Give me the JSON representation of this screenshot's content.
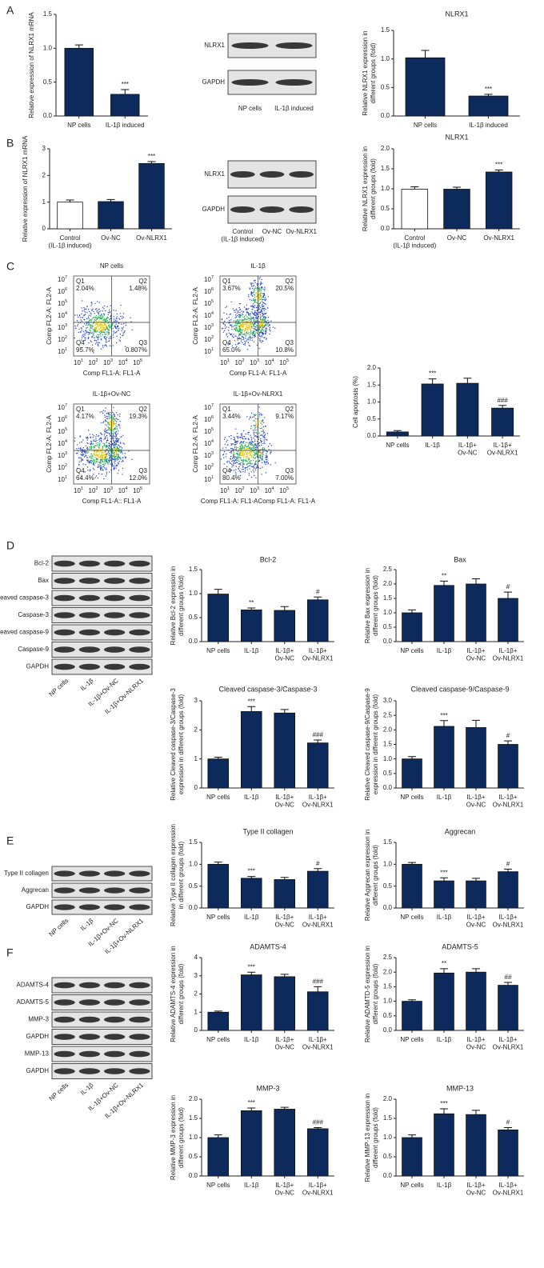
{
  "panel_letters": [
    "A",
    "B",
    "C",
    "D",
    "E",
    "F"
  ],
  "chart_data": [
    {
      "type": "bar",
      "ylabel": [
        "Relative expression of NLRX1 mRNA"
      ],
      "categories": [
        [
          "NP cells"
        ],
        [
          "IL-1β induced"
        ]
      ],
      "values": [
        1.0,
        0.32
      ],
      "errors": [
        0.05,
        0.07
      ],
      "annotations": [
        null,
        "***"
      ],
      "color": "#0c2a5b",
      "ylim": [
        0,
        1.5
      ],
      "yticks": [
        {
          "value": 0,
          "label": "0.0"
        },
        0.5,
        {
          "value": 1,
          "label": "1.0"
        },
        1.5
      ]
    },
    {
      "type": "bar",
      "title": "NLRX1",
      "ylabel": [
        "Relative NLRX1 expression in",
        "different groups (fold)"
      ],
      "categories": [
        [
          "NP cells"
        ],
        [
          "IL-1β induced"
        ]
      ],
      "values": [
        1.02,
        0.35
      ],
      "errors": [
        0.13,
        0.03
      ],
      "annotations": [
        null,
        "***"
      ],
      "color": "#0c2a5b",
      "ylim": [
        0,
        1.5
      ],
      "yticks": [
        {
          "value": 0,
          "label": "0.0"
        },
        0.5,
        {
          "value": 1,
          "label": "1.0"
        },
        1.5
      ]
    },
    {
      "type": "bar",
      "ylabel": [
        "Relative expression of NLRX1 mRNA"
      ],
      "categories": [
        [
          "Control",
          "(IL-1β induced)"
        ],
        [
          "Ov-NC"
        ],
        [
          "Ov-NLRX1"
        ]
      ],
      "values": [
        1.0,
        1.02,
        2.45
      ],
      "errors": [
        0.08,
        0.08,
        0.07
      ],
      "annotations": [
        null,
        null,
        "***"
      ],
      "colors": [
        "#ffffff",
        "#0c2a5b",
        "#0c2a5b"
      ],
      "ylim": [
        0,
        3
      ],
      "yticks": [
        0,
        1,
        2,
        3
      ]
    },
    {
      "type": "bar",
      "title": "NLRX1",
      "ylabel": [
        "Relative NLRX1 expression in",
        "different groups (fold)"
      ],
      "categories": [
        [
          "Control",
          "(IL-1β induced)"
        ],
        [
          "Ov-NC"
        ],
        [
          "Ov-NLRX1"
        ]
      ],
      "values": [
        0.99,
        0.99,
        1.42
      ],
      "errors": [
        0.06,
        0.05,
        0.05
      ],
      "annotations": [
        null,
        null,
        "***"
      ],
      "colors": [
        "#ffffff",
        "#0c2a5b",
        "#0c2a5b"
      ],
      "ylim": [
        0,
        2
      ],
      "yticks": [
        {
          "value": 0,
          "label": "0.0"
        },
        0.5,
        {
          "value": 1,
          "label": "1.0"
        },
        1.5,
        {
          "value": 2,
          "label": "2.0"
        }
      ]
    },
    {
      "type": "bar",
      "ylabel": [
        "Cell apoptosis (%)"
      ],
      "categories": [
        [
          "NP cells"
        ],
        [
          "IL-1β"
        ],
        [
          "IL-1β+",
          "Ov-NC"
        ],
        [
          "IL-1β+",
          "Ov-NLRX1"
        ]
      ],
      "values": [
        0.12,
        1.53,
        1.55,
        0.82
      ],
      "errors": [
        0.04,
        0.15,
        0.15,
        0.08
      ],
      "annotations": [
        null,
        "***",
        null,
        "###"
      ],
      "color": "#0c2a5b",
      "ylim": [
        0,
        2
      ],
      "yticks": [
        {
          "value": 0,
          "label": "0.0"
        },
        0.5,
        {
          "value": 1,
          "label": "1.0"
        },
        1.5,
        {
          "value": 2,
          "label": "2.0"
        }
      ]
    },
    {
      "type": "bar",
      "title": "Bcl-2",
      "ylabel": [
        "Relative Bcl-2 expression in",
        "different groups (fold)"
      ],
      "categories": [
        [
          "NP cells"
        ],
        [
          "IL-1β"
        ],
        [
          "IL-1β+",
          "Ov-NC"
        ],
        [
          "IL-1β+",
          "Ov-NLRX1"
        ]
      ],
      "values": [
        0.99,
        0.66,
        0.65,
        0.87
      ],
      "errors": [
        0.1,
        0.04,
        0.08,
        0.06
      ],
      "annotations": [
        null,
        "**",
        null,
        "#"
      ],
      "color": "#0c2a5b",
      "ylim": [
        0,
        1.5
      ],
      "yticks": [
        {
          "value": 0,
          "label": "0.0"
        },
        0.5,
        {
          "value": 1,
          "label": "1.0"
        },
        1.5
      ]
    },
    {
      "type": "bar",
      "title": "Bax",
      "ylabel": [
        "Relative Bax expression in",
        "different groups (fold)"
      ],
      "categories": [
        [
          "NP cells"
        ],
        [
          "IL-1β"
        ],
        [
          "IL-1β+",
          "Ov-NC"
        ],
        [
          "IL-1β+",
          "Ov-NLRX1"
        ]
      ],
      "values": [
        1.0,
        1.95,
        2.0,
        1.5
      ],
      "errors": [
        0.1,
        0.15,
        0.18,
        0.22
      ],
      "annotations": [
        null,
        "**",
        null,
        "#"
      ],
      "color": "#0c2a5b",
      "ylim": [
        0,
        2.5
      ],
      "yticks": [
        {
          "value": 0,
          "label": "0.0"
        },
        0.5,
        {
          "value": 1,
          "label": "1.0"
        },
        1.5,
        {
          "value": 2,
          "label": "2.0"
        },
        2.5
      ]
    },
    {
      "type": "bar",
      "title": "Cleaved caspase-3/Caspase-3",
      "ylabel": [
        "Relative Cleaved caspase-3/Caspase-3",
        "expression in different groups (fold)"
      ],
      "categories": [
        [
          "NP cells"
        ],
        [
          "IL-1β"
        ],
        [
          "IL-1β+",
          "Ov-NC"
        ],
        [
          "IL-1β+",
          "Ov-NLRX1"
        ]
      ],
      "values": [
        1.0,
        2.63,
        2.58,
        1.55
      ],
      "errors": [
        0.06,
        0.17,
        0.12,
        0.1
      ],
      "annotations": [
        null,
        "***",
        null,
        "###"
      ],
      "color": "#0c2a5b",
      "ylim": [
        0,
        3
      ],
      "yticks": [
        0,
        1,
        2,
        3
      ]
    },
    {
      "type": "bar",
      "title": "Cleaved caspase-9/Caspase-9",
      "ylabel": [
        "Relative Cleaved caspase-9/Caspase-9",
        "expression in different groups (fold)"
      ],
      "categories": [
        [
          "NP cells"
        ],
        [
          "IL-1β"
        ],
        [
          "IL-1β+",
          "Ov-NC"
        ],
        [
          "IL-1β+",
          "Ov-NLRX1"
        ]
      ],
      "values": [
        1.0,
        2.12,
        2.08,
        1.5
      ],
      "errors": [
        0.08,
        0.2,
        0.25,
        0.12
      ],
      "annotations": [
        null,
        "***",
        null,
        "#"
      ],
      "color": "#0c2a5b",
      "ylim": [
        0,
        3
      ],
      "yticks": [
        {
          "value": 0,
          "label": "0.0"
        },
        0.5,
        {
          "value": 1,
          "label": "1.0"
        },
        1.5,
        {
          "value": 2,
          "label": "2.0"
        },
        2.5,
        {
          "value": 3,
          "label": "3.0"
        }
      ]
    },
    {
      "type": "bar",
      "title": "Type II collagen",
      "ylabel": [
        "Relative Type II collagen expression",
        "in different groups (fold)"
      ],
      "categories": [
        [
          "NP cells"
        ],
        [
          "IL-1β"
        ],
        [
          "IL-1β+",
          "Ov-NC"
        ],
        [
          "IL-1β+",
          "Ov-NLRX1"
        ]
      ],
      "values": [
        1.0,
        0.68,
        0.65,
        0.84
      ],
      "errors": [
        0.05,
        0.04,
        0.05,
        0.06
      ],
      "annotations": [
        null,
        "***",
        null,
        "#"
      ],
      "color": "#0c2a5b",
      "ylim": [
        0,
        1.5
      ],
      "yticks": [
        {
          "value": 0,
          "label": "0.0"
        },
        0.5,
        {
          "value": 1,
          "label": "1.0"
        },
        1.5
      ]
    },
    {
      "type": "bar",
      "title": "Aggrecan",
      "ylabel": [
        "Relative Aggrecan expression in",
        "different groups (fold)"
      ],
      "categories": [
        [
          "NP cells"
        ],
        [
          "IL-1β"
        ],
        [
          "IL-1β+",
          "Ov-NC"
        ],
        [
          "IL-1β+",
          "Ov-NLRX1"
        ]
      ],
      "values": [
        1.0,
        0.62,
        0.62,
        0.83
      ],
      "errors": [
        0.04,
        0.07,
        0.06,
        0.06
      ],
      "annotations": [
        null,
        "***",
        null,
        "#"
      ],
      "color": "#0c2a5b",
      "ylim": [
        0,
        1.5
      ],
      "yticks": [
        {
          "value": 0,
          "label": "0.0"
        },
        0.5,
        {
          "value": 1,
          "label": "1.0"
        },
        1.5
      ]
    },
    {
      "type": "bar",
      "title": "ADAMTS-4",
      "ylabel": [
        "Relative ADAMTS-4 expression in",
        "different groups (fold)"
      ],
      "categories": [
        [
          "NP cells"
        ],
        [
          "IL-1β"
        ],
        [
          "IL-1β+",
          "Ov-NC"
        ],
        [
          "IL-1β+",
          "Ov-NLRX1"
        ]
      ],
      "values": [
        1.0,
        3.05,
        2.95,
        2.12
      ],
      "errors": [
        0.06,
        0.15,
        0.13,
        0.28
      ],
      "annotations": [
        null,
        "***",
        null,
        "###"
      ],
      "color": "#0c2a5b",
      "ylim": [
        0,
        4
      ],
      "yticks": [
        0,
        1,
        2,
        3,
        4
      ]
    },
    {
      "type": "bar",
      "title": "ADAMTS-5",
      "ylabel": [
        "Relative ADAMTD-5 expression in",
        "different groups (fold)"
      ],
      "categories": [
        [
          "NP cells"
        ],
        [
          "IL-1β"
        ],
        [
          "IL-1β+",
          "Ov-NC"
        ],
        [
          "IL-1β+",
          "Ov-NLRX1"
        ]
      ],
      "values": [
        1.0,
        1.97,
        2.0,
        1.55
      ],
      "errors": [
        0.05,
        0.15,
        0.12,
        0.1
      ],
      "annotations": [
        null,
        "**",
        null,
        "##"
      ],
      "color": "#0c2a5b",
      "ylim": [
        0,
        2.5
      ],
      "yticks": [
        {
          "value": 0,
          "label": "0.0"
        },
        0.5,
        {
          "value": 1,
          "label": "1.0"
        },
        1.5,
        {
          "value": 2,
          "label": "2.0"
        },
        2.5
      ]
    },
    {
      "type": "bar",
      "title": "MMP-3",
      "ylabel": [
        "Relative MMP-3 expression in",
        "different groups (fold)"
      ],
      "categories": [
        [
          "NP cells"
        ],
        [
          "IL-1β"
        ],
        [
          "IL-1β+",
          "Ov-NC"
        ],
        [
          "IL-1β+",
          "Ov-NLRX1"
        ]
      ],
      "values": [
        1.0,
        1.7,
        1.74,
        1.23
      ],
      "errors": [
        0.07,
        0.07,
        0.05,
        0.03
      ],
      "annotations": [
        null,
        "***",
        null,
        "###"
      ],
      "color": "#0c2a5b",
      "ylim": [
        0,
        2
      ],
      "yticks": [
        {
          "value": 0,
          "label": "0.0"
        },
        0.5,
        {
          "value": 1,
          "label": "1.0"
        },
        1.5,
        {
          "value": 2,
          "label": "2.0"
        }
      ]
    },
    {
      "type": "bar",
      "title": "MMP-13",
      "ylabel": [
        "Relative MMP-13 expression in",
        "different groups (fold)"
      ],
      "categories": [
        [
          "NP cells"
        ],
        [
          "IL-1β"
        ],
        [
          "IL-1β+",
          "Ov-NC"
        ],
        [
          "IL-1β+",
          "Ov-NLRX1"
        ]
      ],
      "values": [
        1.0,
        1.62,
        1.6,
        1.2
      ],
      "errors": [
        0.07,
        0.13,
        0.11,
        0.06
      ],
      "annotations": [
        null,
        "***",
        null,
        "#"
      ],
      "color": "#0c2a5b",
      "ylim": [
        0,
        2
      ],
      "yticks": [
        {
          "value": 0,
          "label": "0.0"
        },
        0.5,
        {
          "value": 1,
          "label": "1.0"
        },
        1.5,
        {
          "value": 2,
          "label": "2.0"
        }
      ]
    }
  ],
  "blots": [
    {
      "rows": [
        "NLRX1",
        "GAPDH"
      ],
      "lanes": [
        [
          "NP cells"
        ],
        [
          "IL-1β induced"
        ]
      ]
    },
    {
      "rows": [
        "NLRX1",
        "GAPDH"
      ],
      "lanes": [
        [
          "Control",
          "(IL-1β induced)"
        ],
        [
          "Ov-NC"
        ],
        [
          "Ov-NLRX1"
        ]
      ]
    },
    {
      "rows": [
        "Bcl-2",
        "Bax",
        "Cleaved caspase-3",
        "Caspase-3",
        "Cleaved caspase-9",
        "Caspase-9",
        "GAPDH"
      ],
      "lanes": [
        [
          "NP cells"
        ],
        [
          "IL-1β"
        ],
        [
          "IL-1β+Ov-NC"
        ],
        [
          "IL-1β+Ov-NLRX1"
        ]
      ]
    },
    {
      "rows": [
        "Type II collagen",
        "Aggrecan",
        "GAPDH"
      ],
      "lanes": [
        [
          "NP cells"
        ],
        [
          "IL-1β"
        ],
        [
          "IL-1β+Ov-NC"
        ],
        [
          "IL-1β+Ov-NLRX1"
        ]
      ]
    },
    {
      "rows": [
        "ADAMTS-4",
        "ADAMTS-5",
        "MMP-3",
        "GAPDH",
        "MMP-13",
        "GAPDH"
      ],
      "lanes": [
        [
          "NP cells"
        ],
        [
          "IL-1β"
        ],
        [
          "IL-1β+Ov-NC"
        ],
        [
          "IL-1β+Ov-NLRX1"
        ]
      ]
    }
  ],
  "flow_tick_base": "10",
  "flow_yticks": [
    1,
    2,
    3,
    4,
    5,
    6,
    7
  ],
  "flow_xticks": [
    1,
    2,
    3,
    4,
    5
  ],
  "flow_plots": [
    {
      "title": "NP cells",
      "quadrants": [
        "Q1",
        "Q2",
        "Q3",
        "Q4"
      ],
      "percents": [
        "2.04%",
        "1.48%",
        "0.807%",
        "95.7%"
      ],
      "xlabel": "Comp FL1-A: FL1-A",
      "ylabel": "Comp FL2-A: FL2-A"
    },
    {
      "title": "IL-1β",
      "quadrants": [
        "Q1",
        "Q2",
        "Q3",
        "Q4"
      ],
      "percents": [
        "3.67%",
        "20.5%",
        "10.8%",
        "65.0%"
      ],
      "xlabel": "Comp FL1-A: FL1-A",
      "ylabel": "Comp FL2-A: FL2-A"
    },
    {
      "title": "IL-1β+Ov-NC",
      "quadrants": [
        "Q1",
        "Q2",
        "Q3",
        "Q4"
      ],
      "percents": [
        "4.17%",
        "19.3%",
        "12.0%",
        "64.4%"
      ],
      "xlabel": "Comp FL1-A:: FL1-A",
      "ylabel": "Comp FL2-A: FL2-A"
    },
    {
      "title": "IL-1β+Ov-NLRX1",
      "quadrants": [
        "Q1",
        "Q2",
        "Q3",
        "Q4"
      ],
      "percents": [
        "3.44%",
        "9.17%",
        "7.00%",
        "80.4%"
      ],
      "xlabel": "Comp FL1-A: FL1-AComp FL1-A: FL1-A",
      "ylabel": "Comp FL2-A: FL2-A"
    }
  ]
}
